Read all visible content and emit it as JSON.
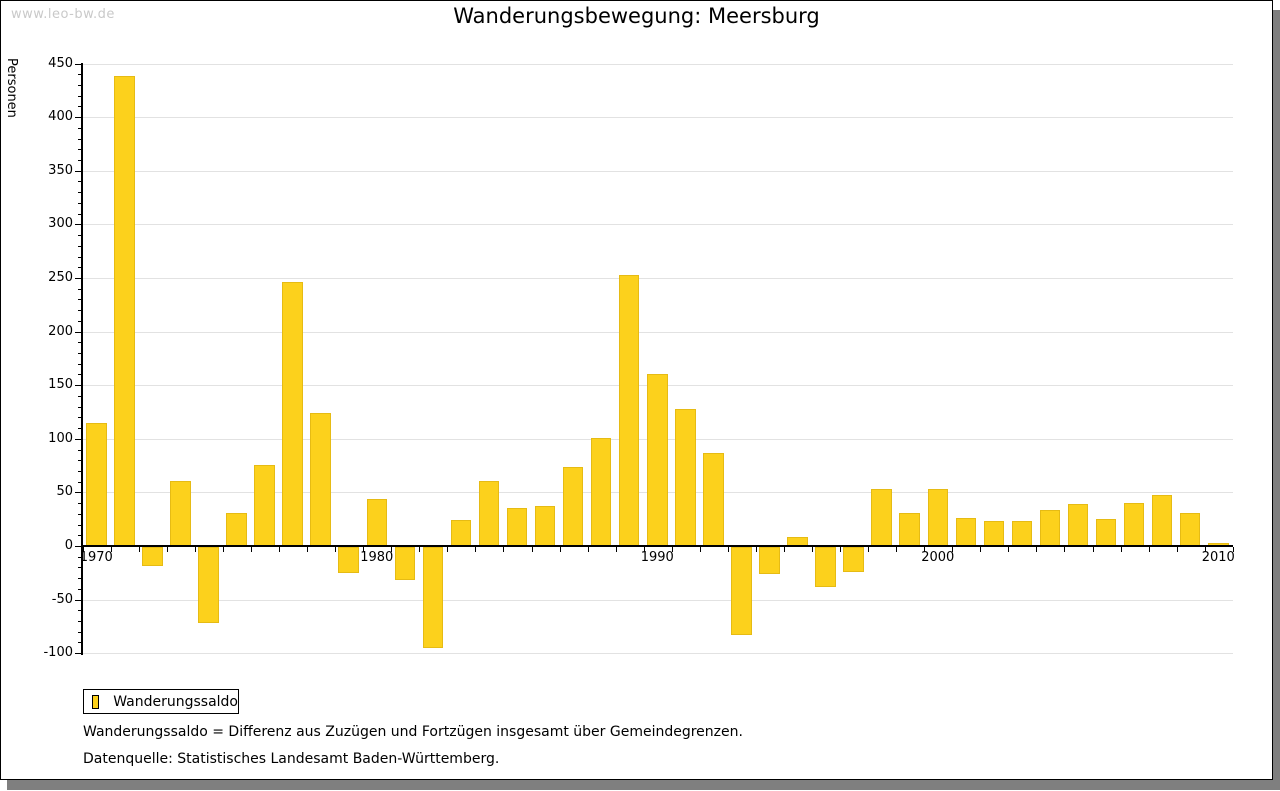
{
  "watermark": "www.leo-bw.de",
  "title": "Wanderungsbewegung: Meersburg",
  "chart_data": {
    "type": "bar",
    "title": "Wanderungsbewegung: Meersburg",
    "xlabel": "",
    "ylabel": "Personen",
    "ylim": [
      -100,
      450
    ],
    "ytick_step": 50,
    "ytick_minor_step": 10,
    "grid": "horizontal",
    "legend_position": "bottom-left",
    "bar_color": "#fcd11c",
    "x": [
      1970,
      1971,
      1972,
      1973,
      1974,
      1975,
      1976,
      1977,
      1978,
      1979,
      1980,
      1981,
      1982,
      1983,
      1984,
      1985,
      1986,
      1987,
      1988,
      1989,
      1990,
      1991,
      1992,
      1993,
      1994,
      1995,
      1996,
      1997,
      1998,
      1999,
      2000,
      2001,
      2002,
      2003,
      2004,
      2005,
      2006,
      2007,
      2008,
      2009,
      2010
    ],
    "xtick_labels": [
      "1970",
      "1980",
      "1990",
      "2000",
      "2010"
    ],
    "series": [
      {
        "name": "Wanderungssaldo",
        "values": [
          115,
          438,
          -18,
          61,
          -71,
          31,
          76,
          246,
          124,
          -24,
          44,
          -31,
          -94,
          24,
          61,
          35,
          37,
          74,
          101,
          253,
          160,
          128,
          87,
          -82,
          -25,
          8,
          -37,
          -23,
          53,
          31,
          53,
          26,
          23,
          23,
          34,
          39,
          25,
          40,
          48,
          31,
          3
        ]
      }
    ]
  },
  "footnotes": [
    "Wanderungssaldo = Differenz aus Zuzügen und Fortzügen insgesamt über Gemeindegrenzen.",
    "Datenquelle: Statistisches Landesamt Baden-Württemberg."
  ]
}
